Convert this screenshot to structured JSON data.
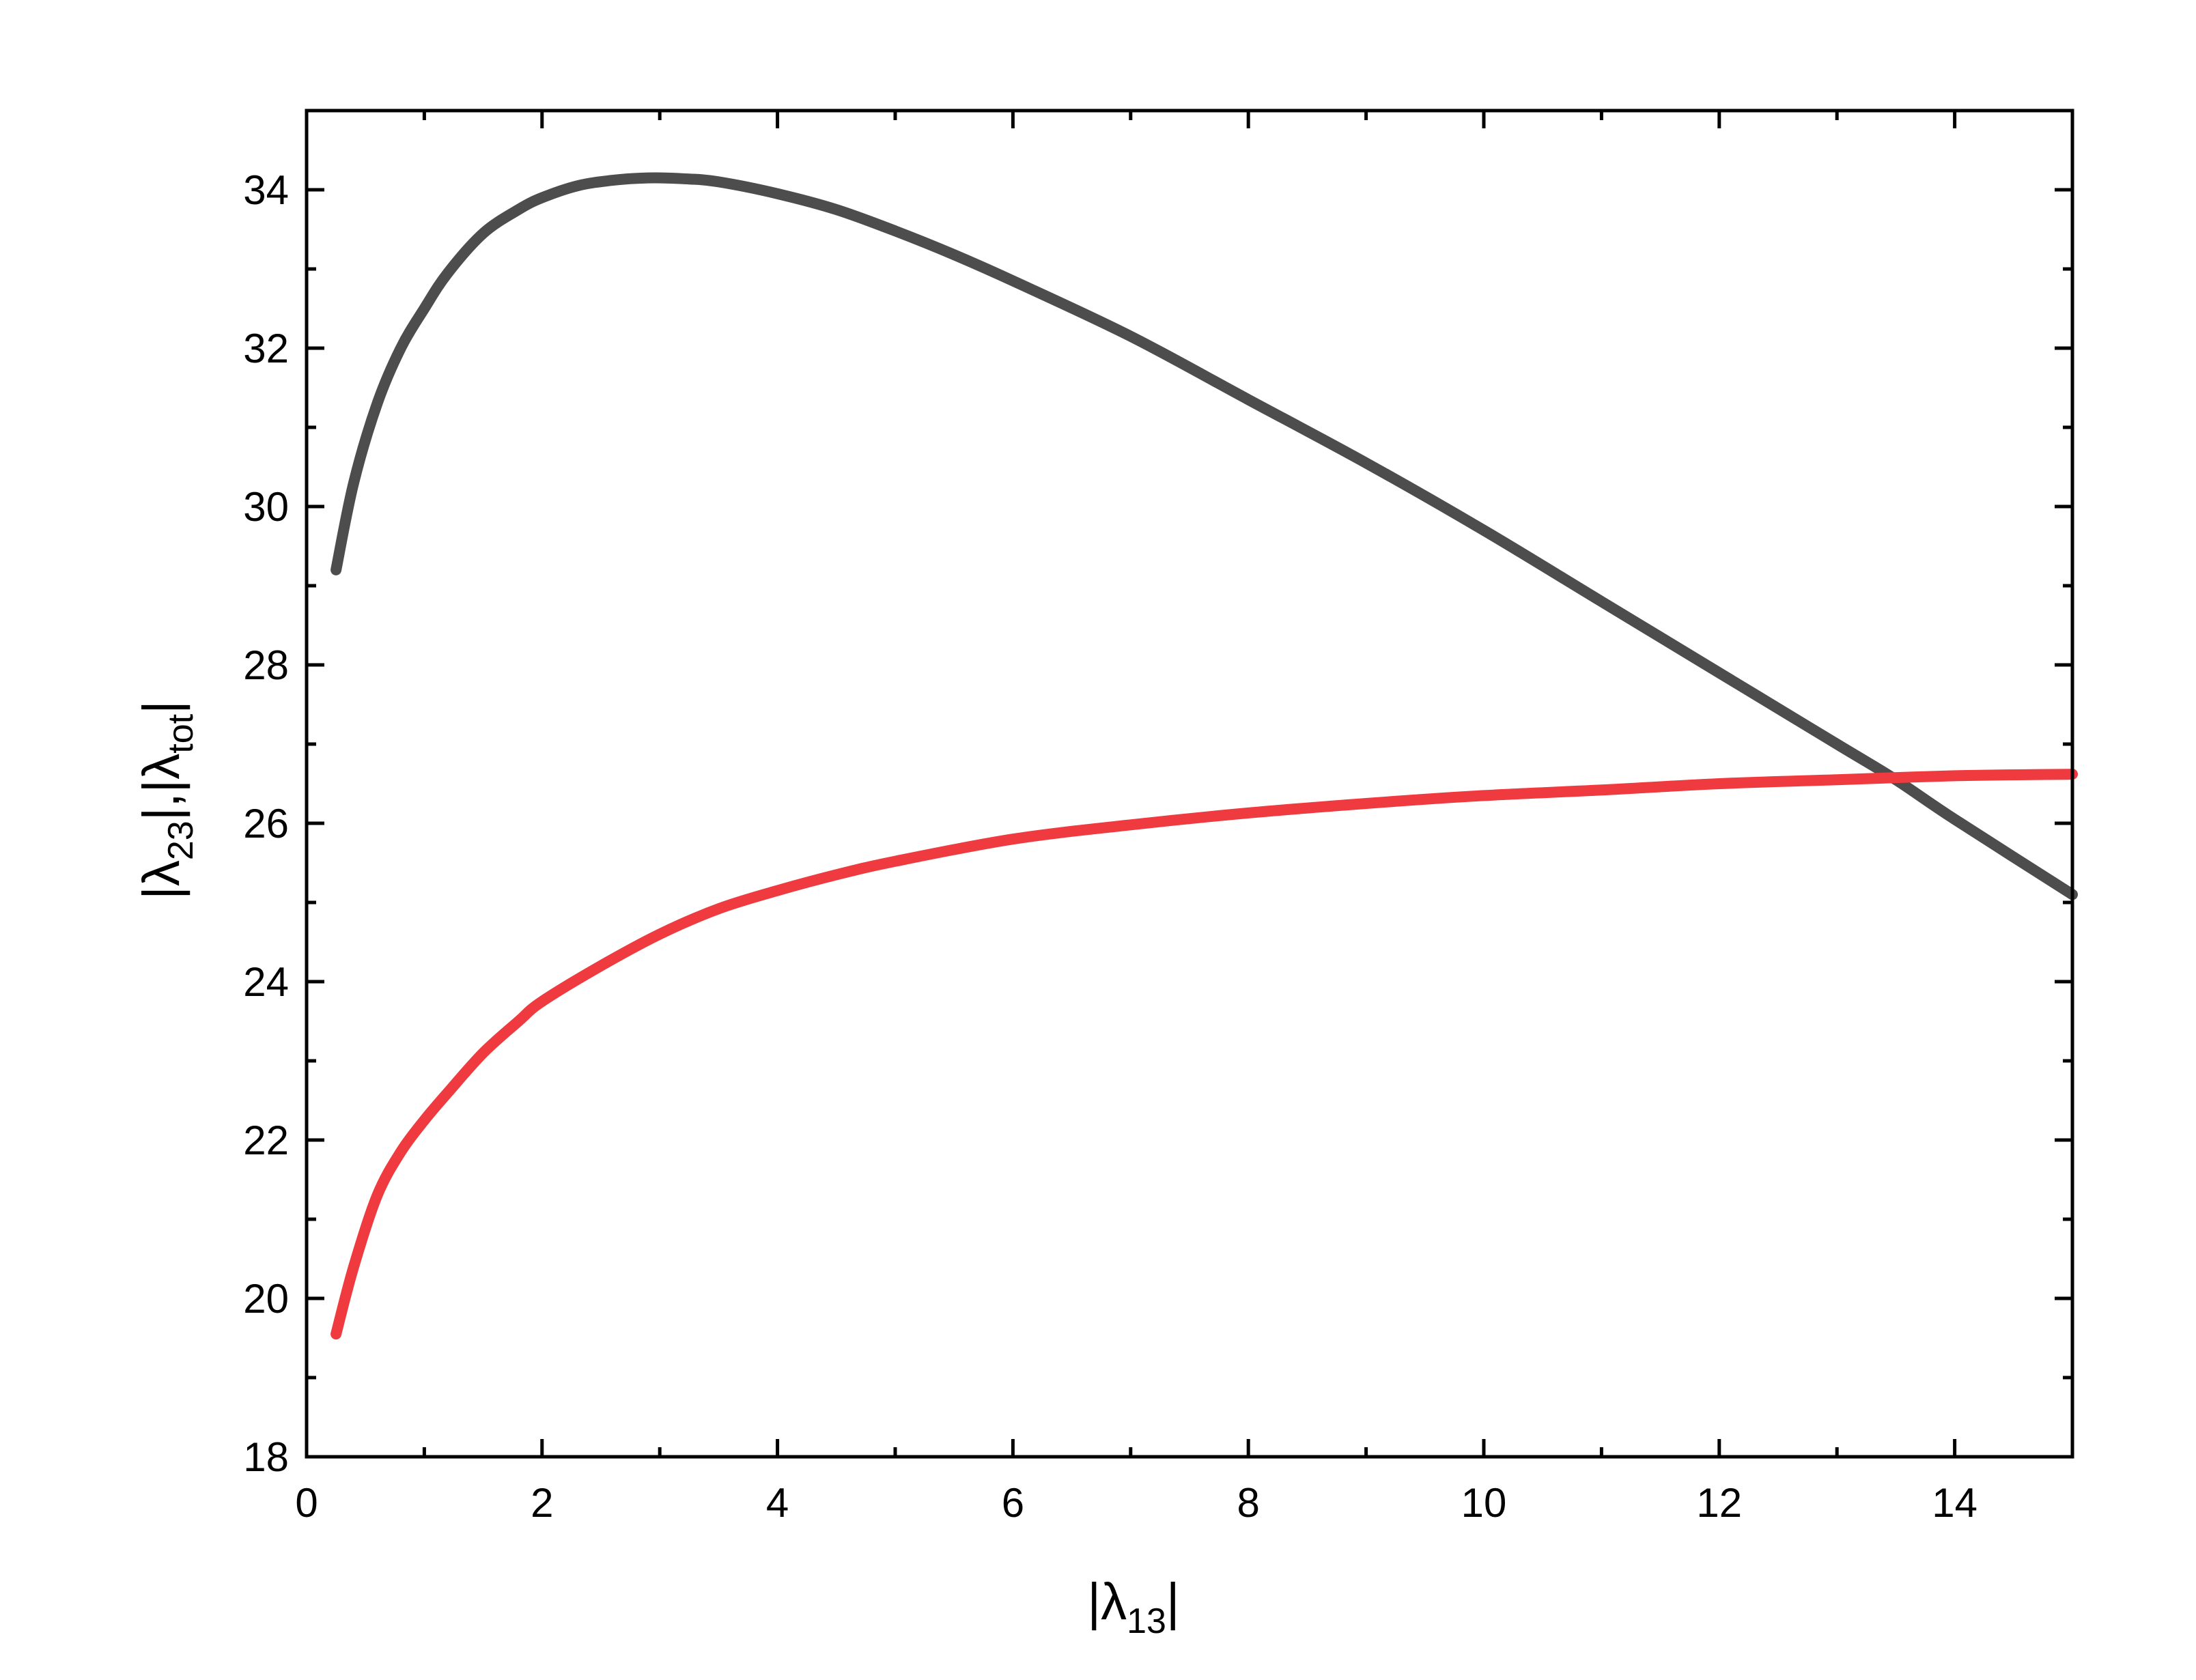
{
  "chart_data": {
    "type": "line",
    "xlabel": {
      "pre": "|λ",
      "sub": "13",
      "post": "|"
    },
    "ylabel": {
      "part1_pre": "|λ",
      "part1_sub": "23",
      "sep": "|,|λ",
      "part2_sub": "tot",
      "part2_post": "|"
    },
    "xlim": [
      0,
      15
    ],
    "ylim": [
      18,
      35
    ],
    "xticks": [
      "0",
      "2",
      "4",
      "6",
      "8",
      "10",
      "12",
      "14"
    ],
    "yticks": [
      "18",
      "20",
      "22",
      "24",
      "26",
      "28",
      "30",
      "32",
      "34"
    ],
    "grid": false,
    "series": [
      {
        "color": "#4d4d4d",
        "x": [
          0.25,
          0.4,
          0.6,
          0.8,
          1.0,
          1.2,
          1.5,
          1.8,
          2.0,
          2.3,
          2.6,
          2.9,
          3.2,
          3.5,
          4.0,
          4.5,
          5.0,
          5.5,
          6.0,
          7.0,
          8.0,
          9.0,
          10.0,
          11.0,
          12.0,
          13.0,
          13.5,
          14.0,
          15.0
        ],
        "y": [
          29.2,
          30.3,
          31.3,
          32.0,
          32.5,
          32.95,
          33.45,
          33.75,
          33.9,
          34.05,
          34.12,
          34.15,
          34.14,
          34.1,
          33.95,
          33.75,
          33.48,
          33.18,
          32.85,
          32.15,
          31.35,
          30.55,
          29.7,
          28.8,
          27.9,
          27.0,
          26.55,
          26.05,
          25.1
        ]
      },
      {
        "color": "#ef3b3f",
        "x": [
          0.25,
          0.4,
          0.6,
          0.8,
          1.0,
          1.2,
          1.5,
          1.8,
          2.0,
          2.5,
          3.0,
          3.5,
          4.0,
          4.5,
          5.0,
          6.0,
          7.0,
          8.0,
          9.0,
          10.0,
          11.0,
          12.0,
          13.0,
          14.0,
          15.0
        ],
        "y": [
          19.55,
          20.4,
          21.3,
          21.85,
          22.25,
          22.6,
          23.1,
          23.5,
          23.75,
          24.2,
          24.6,
          24.92,
          25.15,
          25.35,
          25.52,
          25.8,
          25.98,
          26.13,
          26.25,
          26.35,
          26.42,
          26.5,
          26.55,
          26.6,
          26.62
        ]
      }
    ]
  }
}
